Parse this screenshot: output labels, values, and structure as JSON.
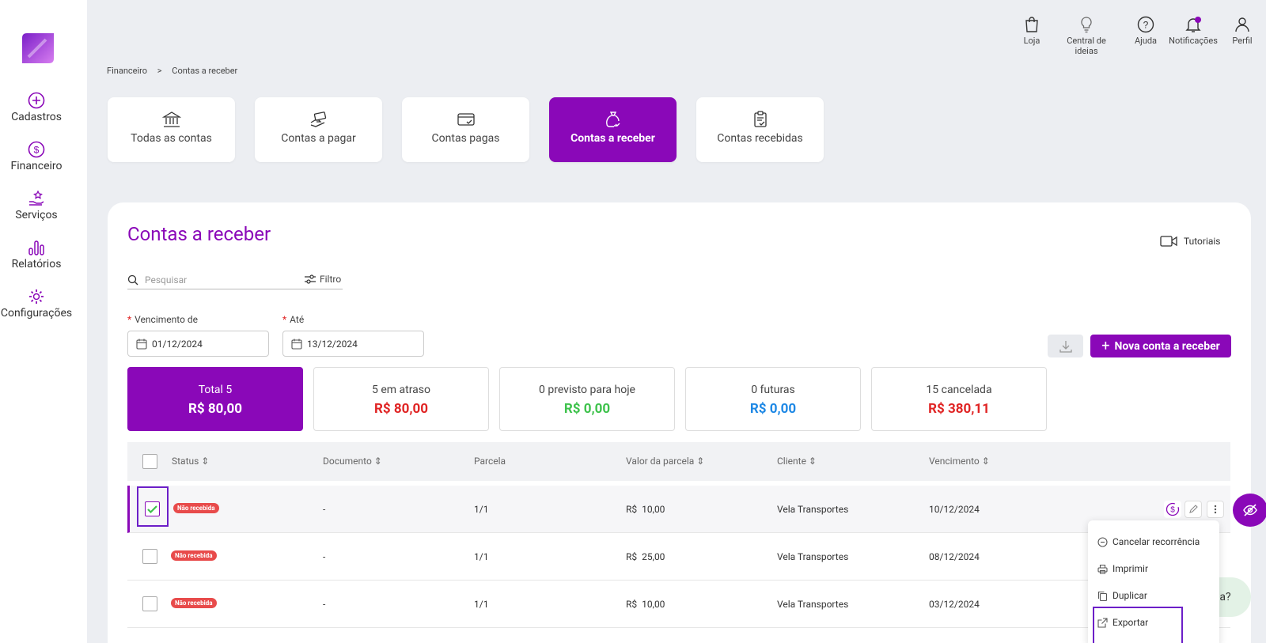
{
  "sidebar": {
    "items": [
      {
        "label": "Cadastros",
        "icon": "plus-circle-icon"
      },
      {
        "label": "Financeiro",
        "icon": "dollar-circle-icon"
      },
      {
        "label": "Serviços",
        "icon": "hand-star-icon"
      },
      {
        "label": "Relatórios",
        "icon": "bar-chart-icon"
      },
      {
        "label": "Configurações",
        "icon": "gear-icon"
      }
    ]
  },
  "topbar": {
    "items": [
      {
        "label": "Loja",
        "icon": "shopping-bag-icon"
      },
      {
        "label": "Central de ideias",
        "icon": "lightbulb-icon"
      },
      {
        "label": "Ajuda",
        "icon": "question-circle-icon"
      },
      {
        "label": "Notificações",
        "icon": "bell-icon"
      },
      {
        "label": "Perfil",
        "icon": "user-icon"
      }
    ]
  },
  "breadcrumb": {
    "parent": "Financeiro",
    "separator": ">",
    "current": "Contas a receber"
  },
  "cards": [
    {
      "label": "Todas as contas",
      "icon": "bank-icon"
    },
    {
      "label": "Contas a pagar",
      "icon": "hand-money-icon"
    },
    {
      "label": "Contas pagas",
      "icon": "card-check-icon"
    },
    {
      "label": "Contas a receber",
      "icon": "money-bag-icon"
    },
    {
      "label": "Contas recebidas",
      "icon": "clipboard-check-icon"
    }
  ],
  "page": {
    "title": "Contas a receber",
    "tutorials": "Tutoriais"
  },
  "search": {
    "placeholder": "Pesquisar",
    "filter_label": "Filtro"
  },
  "filters": {
    "from_label": "Vencimento de",
    "from_value": "01/12/2024",
    "to_label": "Até",
    "to_value": "13/12/2024",
    "required_mark": "*"
  },
  "actions": {
    "new_label": "Nova conta a receber",
    "new_icon": "+"
  },
  "summary": [
    {
      "label": "Total 5",
      "value": "R$ 80,00",
      "color": "#ffffff"
    },
    {
      "label": "5 em atraso",
      "value": "R$ 80,00",
      "color": "#e02424"
    },
    {
      "label": "0 previsto para hoje",
      "value": "R$ 0,00",
      "color": "#3ec24c"
    },
    {
      "label": "0 futuras",
      "value": "R$ 0,00",
      "color": "#1e88e5"
    },
    {
      "label": "15 cancelada",
      "value": "R$ 380,11",
      "color": "#e02424"
    }
  ],
  "table": {
    "headers": [
      "Status",
      "Documento",
      "Parcela",
      "Valor da parcela",
      "Cliente",
      "Vencimento"
    ],
    "rows": [
      {
        "status": "Não recebida",
        "documento": "-",
        "parcela": "1/1",
        "valor": "R$  10,00",
        "cliente": "Vela Transportes",
        "vencimento": "10/12/2024",
        "checked": true
      },
      {
        "status": "Não recebida",
        "documento": "-",
        "parcela": "1/1",
        "valor": "R$  25,00",
        "cliente": "Vela Transportes",
        "vencimento": "08/12/2024",
        "checked": false
      },
      {
        "status": "Não recebida",
        "documento": "-",
        "parcela": "1/1",
        "valor": "R$  10,00",
        "cliente": "Vela Transportes",
        "vencimento": "03/12/2024",
        "checked": false
      }
    ]
  },
  "context_menu": {
    "items": [
      {
        "label": "Cancelar recorrência",
        "icon": "minus-circle-icon"
      },
      {
        "label": "Imprimir",
        "icon": "printer-icon"
      },
      {
        "label": "Duplicar",
        "icon": "copy-icon"
      },
      {
        "label": "Exportar",
        "icon": "export-icon"
      }
    ]
  },
  "help": {
    "text": "la?"
  },
  "colors": {
    "accent": "#8a08b8",
    "danger": "#e84b4b",
    "background": "#eceef2"
  }
}
